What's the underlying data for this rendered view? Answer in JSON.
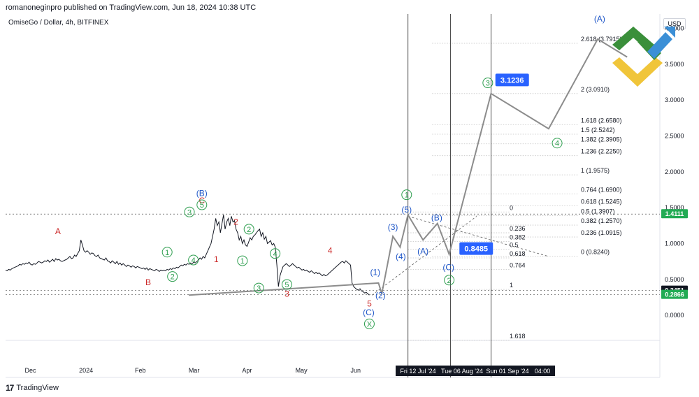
{
  "header": {
    "publisher": "romanoneginpro published on TradingView.com, Jun 18, 2024 10:38 UTC",
    "symbol": "OmiseGo / Dollar, 4h, BITFINEX",
    "currency": "USD"
  },
  "footer": {
    "brand": "TradingView",
    "logo": "17"
  },
  "colors": {
    "price_line": "#131722",
    "projection": "#8c8c8c",
    "green_label": "#2e9e4f",
    "blue_label": "#1e56c8",
    "red_label": "#cc2b2b",
    "badge_blue": "#2962ff",
    "badge_green": "#22ab54",
    "logo_green": "#3a8f3a",
    "logo_yellow": "#f0c53a",
    "logo_blue": "#3b8fd6"
  },
  "chart_data": {
    "type": "line",
    "title": "OmiseGo / Dollar, 4h, BITFINEX",
    "ylim": [
      -0.35,
      4.2
    ],
    "y_ticks": [
      "4.0000",
      "3.5000",
      "3.0000",
      "2.5000",
      "2.0000",
      "1.5000",
      "1.0000",
      "0.5000",
      "0.0000"
    ],
    "y_tick_values": [
      4.0,
      3.5,
      3.0,
      2.5,
      2.0,
      1.5,
      1.0,
      0.5,
      0.0
    ],
    "x_ticks": [
      "Dec",
      "2024",
      "Feb",
      "Mar",
      "Apr",
      "May",
      "Jun"
    ],
    "x_highlight_ticks": [
      "Fri 12 Jul '24",
      "Tue 06 Aug '24",
      "Sun 01 Sep '24",
      "04:00"
    ],
    "price_badges": [
      {
        "label": "1.4111",
        "value": 1.4111,
        "color": "#22ab54"
      },
      {
        "label": "0.3451",
        "value": 0.3451,
        "color": "#131722"
      },
      {
        "label": "0.2866",
        "value": 0.2866,
        "color": "#22ab54"
      }
    ],
    "callouts": [
      {
        "label": "3.1236",
        "value": 3.1236
      },
      {
        "label": "0.8485",
        "value": 0.8485
      }
    ],
    "price_series": [
      0.63,
      0.62,
      0.64,
      0.63,
      0.65,
      0.66,
      0.67,
      0.68,
      0.69,
      0.71,
      0.7,
      0.72,
      0.71,
      0.73,
      0.72,
      0.74,
      0.71,
      0.7,
      0.72,
      0.71,
      0.73,
      0.75,
      0.74,
      0.73,
      0.74,
      0.76,
      0.75,
      0.77,
      0.74,
      0.76,
      0.78,
      0.75,
      0.79,
      0.77,
      0.78,
      0.76,
      0.75,
      0.76,
      0.77,
      0.78,
      0.8,
      0.82,
      0.79,
      0.8,
      0.84,
      0.82,
      0.86,
      0.9,
      1.05,
      0.98,
      0.9,
      0.88,
      0.9,
      0.88,
      0.85,
      0.87,
      0.86,
      0.83,
      0.82,
      0.84,
      0.8,
      0.79,
      0.78,
      0.77,
      0.8,
      0.76,
      0.75,
      0.73,
      0.76,
      0.74,
      0.72,
      0.75,
      0.71,
      0.73,
      0.7,
      0.72,
      0.7,
      0.68,
      0.7,
      0.69,
      0.67,
      0.69,
      0.68,
      0.66,
      0.68,
      0.67,
      0.66,
      0.65,
      0.66,
      0.64,
      0.66,
      0.63,
      0.65,
      0.64,
      0.63,
      0.62,
      0.64,
      0.63,
      0.61,
      0.63,
      0.62,
      0.63,
      0.62,
      0.64,
      0.63,
      0.65,
      0.64,
      0.66,
      0.65,
      0.67,
      0.66,
      0.68,
      0.7,
      0.69,
      0.71,
      0.7,
      0.72,
      0.71,
      0.73,
      0.72,
      0.74,
      0.73,
      0.75,
      0.77,
      0.8,
      0.78,
      0.82,
      0.8,
      0.85,
      0.9,
      0.95,
      1.0,
      1.1,
      1.2,
      1.35,
      1.25,
      1.3,
      1.15,
      1.28,
      1.4,
      1.2,
      1.3,
      1.35,
      1.25,
      1.38,
      1.3,
      1.32,
      1.2,
      1.15,
      1.05,
      1.1,
      1.0,
      1.05,
      0.98,
      0.96,
      1.02,
      1.08,
      1.05,
      1.1,
      1.12,
      1.15,
      1.18,
      1.2,
      1.1,
      1.15,
      1.06,
      1.1,
      1.0,
      1.02,
      1.04,
      0.98,
      1.0,
      0.95,
      0.7,
      0.4,
      0.55,
      0.62,
      0.68,
      0.7,
      0.72,
      0.7,
      0.68,
      0.7,
      0.72,
      0.7,
      0.68,
      0.66,
      0.67,
      0.65,
      0.63,
      0.64,
      0.62,
      0.63,
      0.61,
      0.6,
      0.62,
      0.6,
      0.58,
      0.6,
      0.58,
      0.59,
      0.57,
      0.55,
      0.57,
      0.55,
      0.56,
      0.58,
      0.6,
      0.62,
      0.64,
      0.66,
      0.68,
      0.7,
      0.72,
      0.74,
      0.75,
      0.73,
      0.76,
      0.74,
      0.72,
      0.7,
      0.45,
      0.4,
      0.38,
      0.36,
      0.35,
      0.37,
      0.34,
      0.33,
      0.31,
      0.32,
      0.3,
      0.28
    ],
    "projection_path": [
      [
        0.28,
        0.28
      ],
      [
        0.57,
        0.45
      ],
      [
        0.575,
        0.3
      ],
      [
        0.592,
        1.1
      ],
      [
        0.603,
        0.95
      ],
      [
        0.615,
        1.4
      ],
      [
        0.638,
        1.05
      ],
      [
        0.66,
        1.28
      ],
      [
        0.678,
        0.85
      ],
      [
        0.742,
        3.09
      ],
      [
        0.83,
        2.6
      ],
      [
        0.905,
        3.85
      ],
      [
        0.95,
        3.6
      ]
    ],
    "diagonal_lines": [
      {
        "from": [
          0.56,
          0.28
        ],
        "to": [
          0.72,
          1.38
        ],
        "style": "dashed"
      },
      {
        "from": [
          0.615,
          1.38
        ],
        "to": [
          0.83,
          0.82
        ],
        "style": "dashed"
      }
    ],
    "vertical_lines_x": [
      0.615,
      0.68,
      0.742
    ],
    "fib_right": [
      {
        "label": "2.618 (3.7915)",
        "value": 3.7915
      },
      {
        "label": "2 (3.0910)",
        "value": 3.091
      },
      {
        "label": "1.618 (2.6580)",
        "value": 2.658
      },
      {
        "label": "1.5 (2.5242)",
        "value": 2.5242
      },
      {
        "label": "1.382 (2.3905)",
        "value": 2.3905
      },
      {
        "label": "1.236 (2.2250)",
        "value": 2.225
      },
      {
        "label": "1 (1.9575)",
        "value": 1.9575
      },
      {
        "label": "0.764 (1.6900)",
        "value": 1.69
      },
      {
        "label": "0.618 (1.5245)",
        "value": 1.5245
      },
      {
        "label": "0.5 (1.3907)",
        "value": 1.3907
      },
      {
        "label": "0.382 (1.2570)",
        "value": 1.257
      },
      {
        "label": "0.236 (1.0915)",
        "value": 1.0915
      },
      {
        "label": "0 (0.8240)",
        "value": 0.824
      }
    ],
    "fib_mid": [
      {
        "label": "0",
        "value": 1.44
      },
      {
        "label": "0.236",
        "value": 1.15
      },
      {
        "label": "0.382",
        "value": 1.03
      },
      {
        "label": "0.5",
        "value": 0.92
      },
      {
        "label": "0.618",
        "value": 0.8
      },
      {
        "label": "0.764",
        "value": 0.64
      },
      {
        "label": "1",
        "value": 0.36
      },
      {
        "label": "1.618",
        "value": -0.35
      }
    ],
    "wave_labels": [
      {
        "text": "A",
        "x": 0.08,
        "y": 1.17,
        "color": "red",
        "circle": false
      },
      {
        "text": "B",
        "x": 0.218,
        "y": 0.46,
        "color": "red",
        "circle": false
      },
      {
        "text": "(B)",
        "x": 0.3,
        "y": 1.7,
        "color": "blue",
        "circle": false
      },
      {
        "text": "C",
        "x": 0.3,
        "y": 1.6,
        "color": "red",
        "circle": false
      },
      {
        "text": "5",
        "x": 0.3,
        "y": 1.54,
        "color": "green",
        "circle": true
      },
      {
        "text": "3",
        "x": 0.281,
        "y": 1.44,
        "color": "green",
        "circle": true
      },
      {
        "text": "1",
        "x": 0.247,
        "y": 0.88,
        "color": "green",
        "circle": true
      },
      {
        "text": "2",
        "x": 0.255,
        "y": 0.54,
        "color": "green",
        "circle": true
      },
      {
        "text": "4",
        "x": 0.287,
        "y": 0.77,
        "color": "green",
        "circle": true
      },
      {
        "text": "1",
        "x": 0.322,
        "y": 0.78,
        "color": "red",
        "circle": false
      },
      {
        "text": "2",
        "x": 0.352,
        "y": 1.3,
        "color": "red",
        "circle": false
      },
      {
        "text": "2",
        "x": 0.372,
        "y": 1.2,
        "color": "green",
        "circle": true
      },
      {
        "text": "1",
        "x": 0.362,
        "y": 0.76,
        "color": "green",
        "circle": true
      },
      {
        "text": "4",
        "x": 0.412,
        "y": 0.86,
        "color": "green",
        "circle": true
      },
      {
        "text": "3",
        "x": 0.387,
        "y": 0.38,
        "color": "green",
        "circle": true
      },
      {
        "text": "5",
        "x": 0.43,
        "y": 0.43,
        "color": "green",
        "circle": true
      },
      {
        "text": "3",
        "x": 0.43,
        "y": 0.3,
        "color": "red",
        "circle": false
      },
      {
        "text": "4",
        "x": 0.496,
        "y": 0.9,
        "color": "red",
        "circle": false
      },
      {
        "text": "5",
        "x": 0.556,
        "y": 0.16,
        "color": "red",
        "circle": false
      },
      {
        "text": "(C)",
        "x": 0.555,
        "y": 0.04,
        "color": "blue",
        "circle": false
      },
      {
        "text": "X",
        "x": 0.556,
        "y": -0.12,
        "color": "green",
        "circle": true
      },
      {
        "text": "(1)",
        "x": 0.565,
        "y": 0.6,
        "color": "blue",
        "circle": false
      },
      {
        "text": "(2)",
        "x": 0.573,
        "y": 0.28,
        "color": "blue",
        "circle": false
      },
      {
        "text": "(3)",
        "x": 0.592,
        "y": 1.23,
        "color": "blue",
        "circle": false
      },
      {
        "text": "(4)",
        "x": 0.604,
        "y": 0.82,
        "color": "blue",
        "circle": false
      },
      {
        "text": "(5)",
        "x": 0.613,
        "y": 1.47,
        "color": "blue",
        "circle": false
      },
      {
        "text": "1",
        "x": 0.613,
        "y": 1.68,
        "color": "green",
        "circle": true
      },
      {
        "text": "(A)",
        "x": 0.638,
        "y": 0.89,
        "color": "blue",
        "circle": false
      },
      {
        "text": "(B)",
        "x": 0.659,
        "y": 1.36,
        "color": "blue",
        "circle": false
      },
      {
        "text": "(C)",
        "x": 0.677,
        "y": 0.67,
        "color": "blue",
        "circle": false
      },
      {
        "text": "2",
        "x": 0.678,
        "y": 0.49,
        "color": "green",
        "circle": true
      },
      {
        "text": "3",
        "x": 0.737,
        "y": 3.24,
        "color": "green",
        "circle": true
      },
      {
        "text": "4",
        "x": 0.843,
        "y": 2.4,
        "color": "green",
        "circle": true
      },
      {
        "text": "(A)",
        "x": 0.908,
        "y": 4.13,
        "color": "blue",
        "circle": false
      }
    ]
  }
}
